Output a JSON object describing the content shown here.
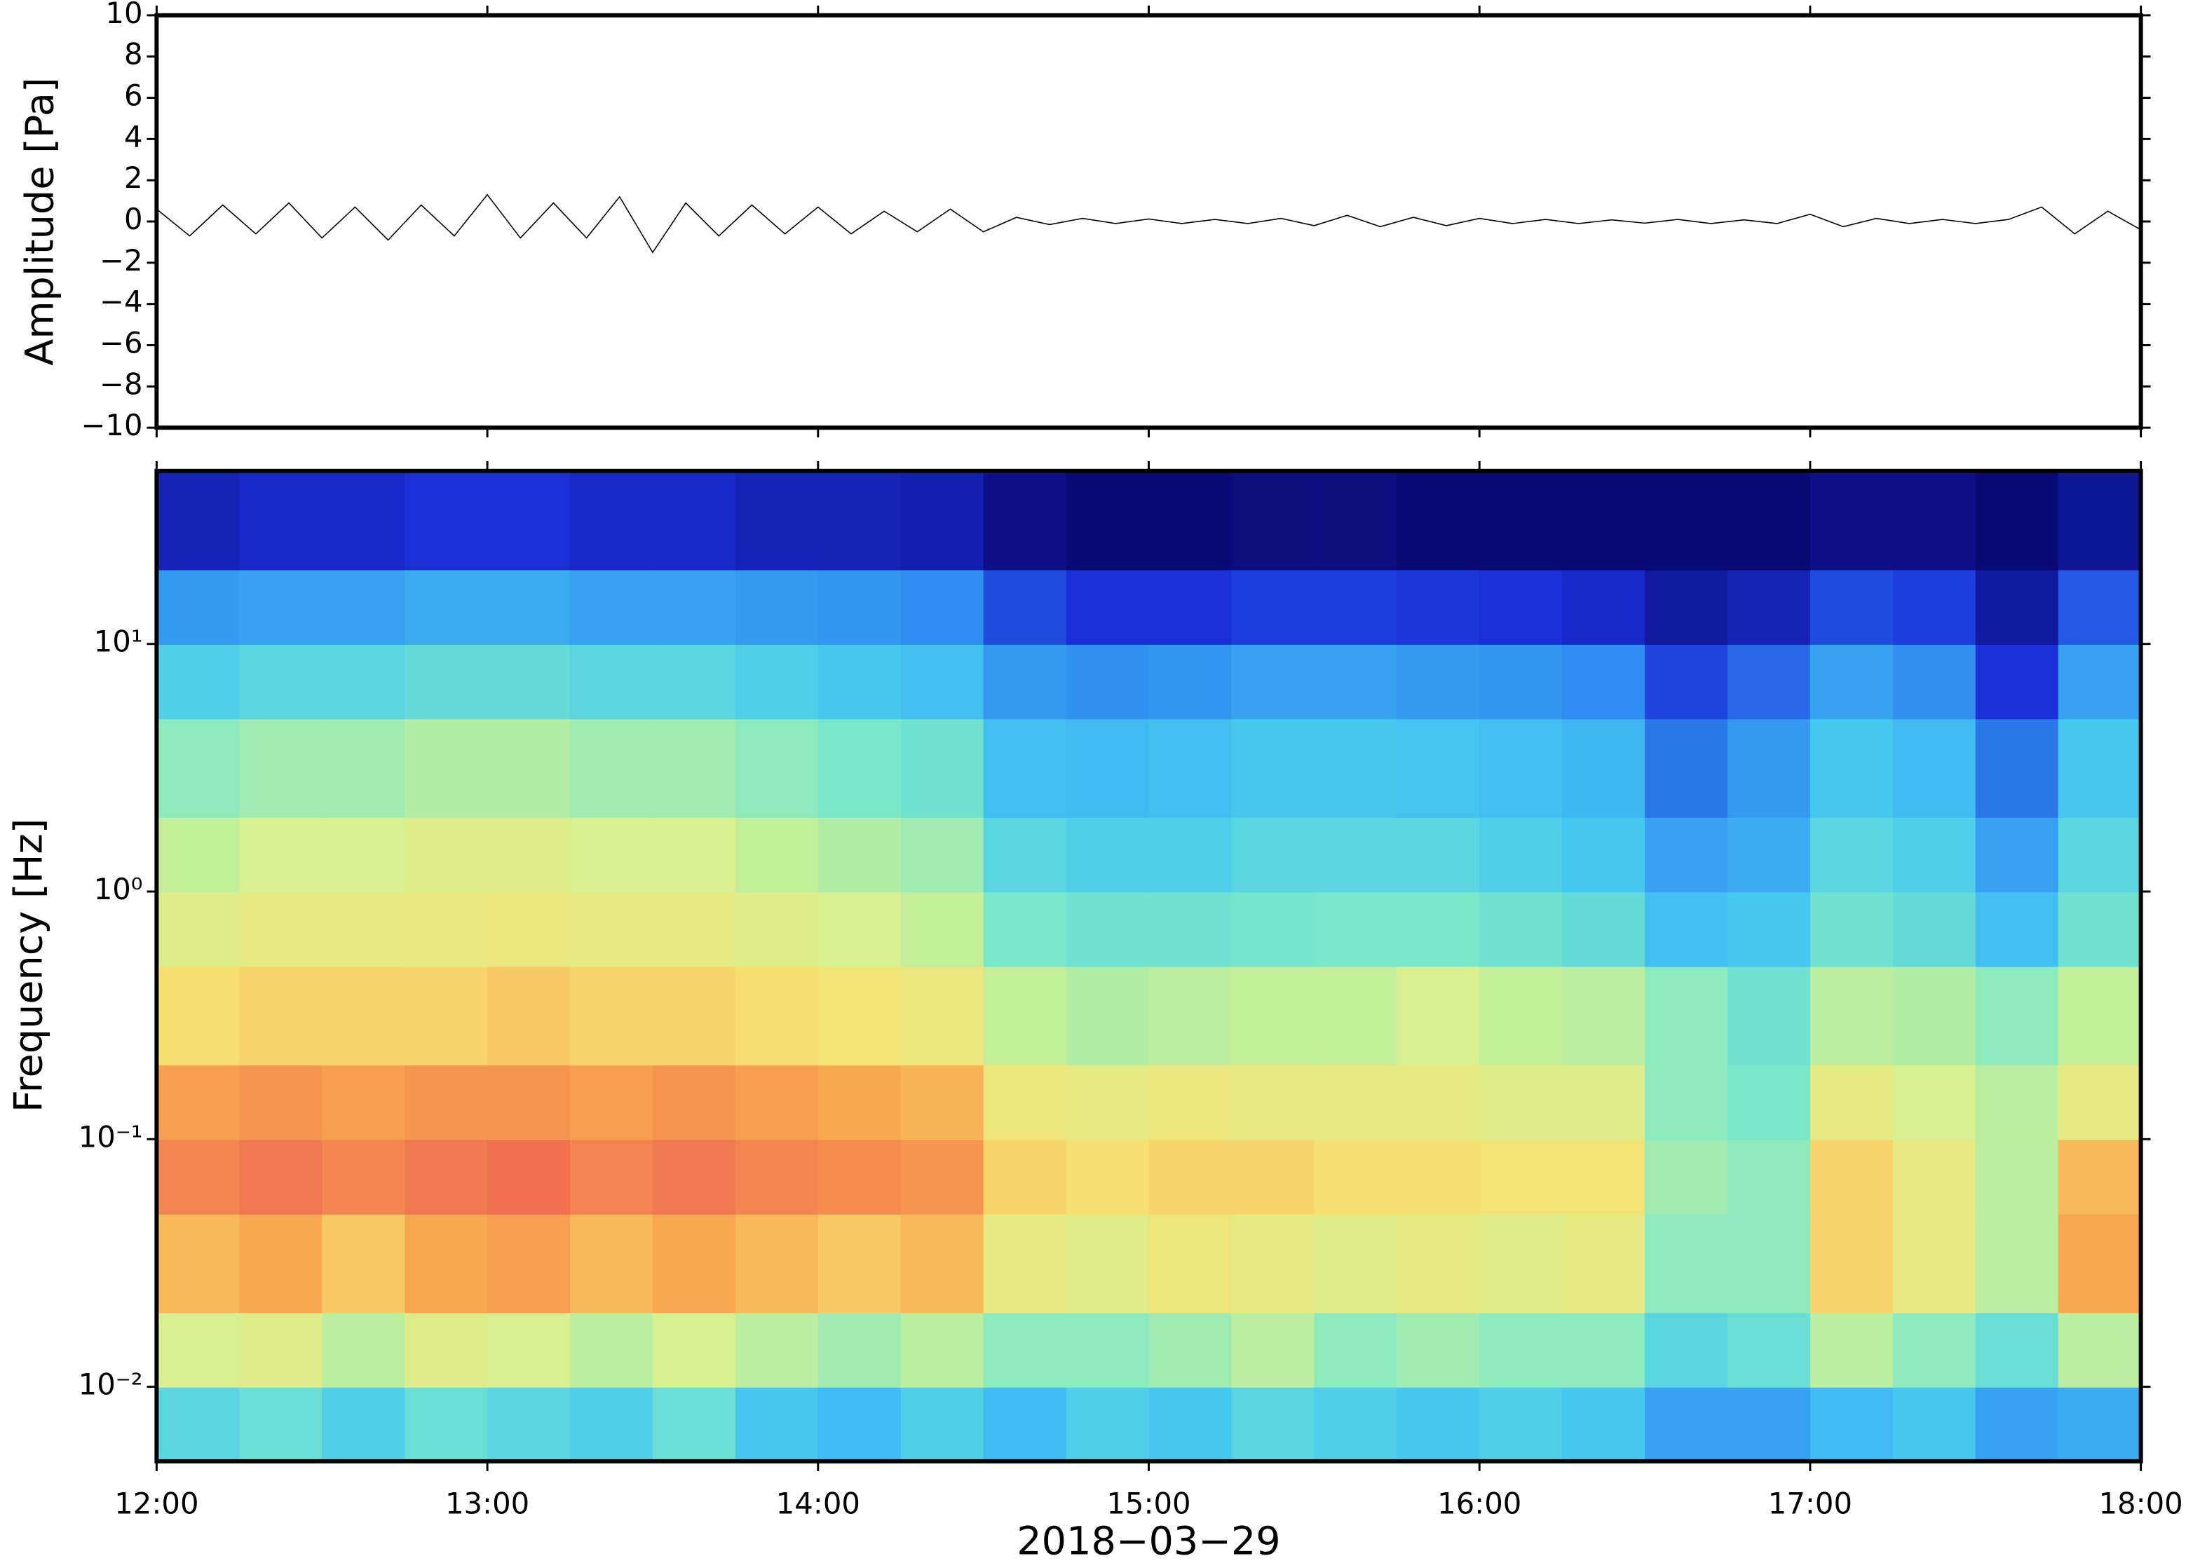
{
  "chart_data": [
    {
      "type": "line",
      "ylabel": "Amplitude [Pa]",
      "color": "#000000",
      "xlim": [
        12,
        18
      ],
      "ylim": [
        -10,
        10
      ],
      "yticks": [
        {
          "value": -10,
          "label": "−10"
        },
        {
          "value": -8,
          "label": "−8"
        },
        {
          "value": -6,
          "label": "−6"
        },
        {
          "value": -4,
          "label": "−4"
        },
        {
          "value": -2,
          "label": "−2"
        },
        0,
        2,
        4,
        6,
        8,
        10
      ],
      "x": [
        12.0,
        12.1,
        12.2,
        12.3,
        12.4,
        12.5,
        12.6,
        12.7,
        12.8,
        12.9,
        13.0,
        13.1,
        13.2,
        13.3,
        13.4,
        13.5,
        13.6,
        13.7,
        13.8,
        13.9,
        14.0,
        14.1,
        14.2,
        14.3,
        14.4,
        14.5,
        14.6,
        14.7,
        14.8,
        14.9,
        15.0,
        15.1,
        15.2,
        15.3,
        15.4,
        15.5,
        15.6,
        15.7,
        15.8,
        15.9,
        16.0,
        16.1,
        16.2,
        16.3,
        16.4,
        16.5,
        16.6,
        16.7,
        16.8,
        16.9,
        17.0,
        17.1,
        17.2,
        17.3,
        17.4,
        17.5,
        17.6,
        17.7,
        17.8,
        17.9,
        18.0
      ],
      "values": [
        0.6,
        -0.7,
        0.8,
        -0.6,
        0.9,
        -0.8,
        0.7,
        -0.9,
        0.8,
        -0.7,
        1.3,
        -0.8,
        0.9,
        -0.8,
        1.2,
        -1.5,
        0.9,
        -0.7,
        0.8,
        -0.6,
        0.7,
        -0.6,
        0.5,
        -0.5,
        0.6,
        -0.5,
        0.2,
        -0.15,
        0.15,
        -0.1,
        0.12,
        -0.1,
        0.1,
        -0.1,
        0.15,
        -0.2,
        0.3,
        -0.25,
        0.2,
        -0.2,
        0.15,
        -0.1,
        0.1,
        -0.1,
        0.08,
        -0.08,
        0.1,
        -0.1,
        0.08,
        -0.1,
        0.35,
        -0.25,
        0.15,
        -0.1,
        0.1,
        -0.1,
        0.1,
        0.7,
        -0.6,
        0.5,
        -0.4
      ]
    },
    {
      "type": "heatmap",
      "ylabel": "Frequency [Hz]",
      "xlabel": "2018−03−29",
      "log_y": true,
      "xlim": [
        12,
        18
      ],
      "ylim": [
        0.005,
        50
      ],
      "xticks": [
        {
          "value": 12,
          "label": "12:00"
        },
        {
          "value": 13,
          "label": "13:00"
        },
        {
          "value": 14,
          "label": "14:00"
        },
        {
          "value": 15,
          "label": "15:00"
        },
        {
          "value": 16,
          "label": "16:00"
        },
        {
          "value": 17,
          "label": "17:00"
        },
        {
          "value": 18,
          "label": "18:00"
        }
      ],
      "yticks": [
        {
          "value": 0.01,
          "label": "10⁻²"
        },
        {
          "value": 0.1,
          "label": "10⁻¹"
        },
        {
          "value": 1,
          "label": "10⁰"
        },
        {
          "value": 10,
          "label": "10¹"
        }
      ],
      "x_edges": [
        12,
        12.25,
        12.5,
        12.75,
        13,
        13.25,
        13.5,
        13.75,
        14,
        14.25,
        14.5,
        14.75,
        15,
        15.25,
        15.5,
        15.75,
        16,
        16.25,
        16.5,
        16.75,
        17,
        17.25,
        17.5,
        17.75,
        18
      ],
      "y_edges": [
        0.005,
        0.01,
        0.02,
        0.05,
        0.1,
        0.2,
        0.5,
        1,
        2,
        5,
        10,
        20,
        50
      ],
      "colormap": [
        {
          "value": 0,
          "color": "#0a0a75"
        },
        {
          "value": 0.12,
          "color": "#1a2fd8"
        },
        {
          "value": 0.25,
          "color": "#2f8cf0"
        },
        {
          "value": 0.38,
          "color": "#45c8f0"
        },
        {
          "value": 0.48,
          "color": "#7ae8c8"
        },
        {
          "value": 0.58,
          "color": "#d8f090"
        },
        {
          "value": 0.68,
          "color": "#f8e070"
        },
        {
          "value": 0.78,
          "color": "#f8a850"
        },
        {
          "value": 0.9,
          "color": "#f07050"
        },
        {
          "value": 1,
          "color": "#e03030"
        }
      ],
      "z": [
        [
          0.42,
          0.45,
          0.4,
          0.45,
          0.42,
          0.4,
          0.45,
          0.38,
          0.35,
          0.4,
          0.35,
          0.4,
          0.38,
          0.42,
          0.4,
          0.38,
          0.4,
          0.38,
          0.3,
          0.3,
          0.35,
          0.38,
          0.3,
          0.32
        ],
        [
          0.58,
          0.6,
          0.55,
          0.6,
          0.58,
          0.55,
          0.58,
          0.55,
          0.52,
          0.55,
          0.5,
          0.5,
          0.52,
          0.55,
          0.5,
          0.52,
          0.5,
          0.5,
          0.42,
          0.45,
          0.55,
          0.5,
          0.45,
          0.55
        ],
        [
          0.75,
          0.78,
          0.72,
          0.78,
          0.8,
          0.75,
          0.78,
          0.75,
          0.72,
          0.75,
          0.62,
          0.6,
          0.65,
          0.62,
          0.6,
          0.62,
          0.6,
          0.62,
          0.5,
          0.5,
          0.7,
          0.62,
          0.55,
          0.78
        ],
        [
          0.85,
          0.88,
          0.85,
          0.88,
          0.9,
          0.86,
          0.88,
          0.85,
          0.84,
          0.82,
          0.7,
          0.68,
          0.7,
          0.7,
          0.68,
          0.68,
          0.66,
          0.66,
          0.52,
          0.5,
          0.7,
          0.62,
          0.55,
          0.75
        ],
        [
          0.8,
          0.82,
          0.8,
          0.82,
          0.82,
          0.8,
          0.82,
          0.8,
          0.78,
          0.76,
          0.65,
          0.62,
          0.64,
          0.62,
          0.62,
          0.62,
          0.6,
          0.6,
          0.5,
          0.48,
          0.62,
          0.58,
          0.55,
          0.62
        ],
        [
          0.68,
          0.7,
          0.7,
          0.7,
          0.72,
          0.7,
          0.7,
          0.68,
          0.66,
          0.64,
          0.56,
          0.54,
          0.55,
          0.56,
          0.56,
          0.58,
          0.56,
          0.55,
          0.5,
          0.46,
          0.55,
          0.54,
          0.5,
          0.56
        ],
        [
          0.6,
          0.62,
          0.62,
          0.63,
          0.64,
          0.62,
          0.62,
          0.6,
          0.58,
          0.56,
          0.48,
          0.46,
          0.46,
          0.47,
          0.48,
          0.48,
          0.46,
          0.44,
          0.36,
          0.38,
          0.46,
          0.44,
          0.36,
          0.46
        ],
        [
          0.56,
          0.58,
          0.58,
          0.6,
          0.6,
          0.58,
          0.58,
          0.56,
          0.54,
          0.52,
          0.42,
          0.4,
          0.4,
          0.42,
          0.42,
          0.42,
          0.4,
          0.38,
          0.3,
          0.32,
          0.42,
          0.4,
          0.3,
          0.42
        ],
        [
          0.5,
          0.52,
          0.52,
          0.54,
          0.54,
          0.52,
          0.52,
          0.5,
          0.48,
          0.46,
          0.36,
          0.35,
          0.36,
          0.38,
          0.38,
          0.37,
          0.36,
          0.34,
          0.22,
          0.28,
          0.38,
          0.35,
          0.22,
          0.38
        ],
        [
          0.4,
          0.42,
          0.42,
          0.44,
          0.44,
          0.42,
          0.42,
          0.4,
          0.38,
          0.36,
          0.28,
          0.26,
          0.27,
          0.3,
          0.3,
          0.28,
          0.27,
          0.25,
          0.15,
          0.2,
          0.3,
          0.26,
          0.12,
          0.3
        ],
        [
          0.28,
          0.3,
          0.3,
          0.32,
          0.32,
          0.3,
          0.3,
          0.28,
          0.27,
          0.25,
          0.16,
          0.12,
          0.12,
          0.14,
          0.14,
          0.13,
          0.12,
          0.1,
          0.05,
          0.08,
          0.16,
          0.14,
          0.05,
          0.18
        ],
        [
          0.08,
          0.1,
          0.1,
          0.12,
          0.12,
          0.1,
          0.1,
          0.08,
          0.08,
          0.07,
          0.02,
          0,
          0,
          0.01,
          0.01,
          0,
          0,
          0,
          0,
          0,
          0.02,
          0.02,
          0,
          0.04
        ]
      ]
    }
  ]
}
